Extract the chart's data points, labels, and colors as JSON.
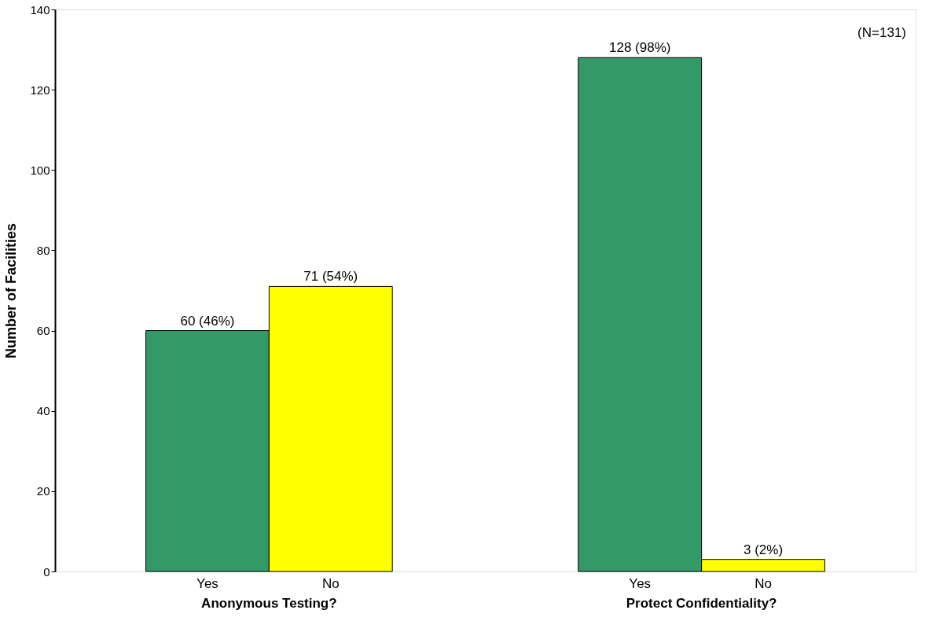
{
  "chart_data": {
    "type": "bar",
    "categories": [
      "Anonymous Testing?",
      "Protect Confidentiality?"
    ],
    "series": [
      {
        "name": "Yes",
        "color": "#339966",
        "values": [
          60,
          128
        ],
        "value_labels": [
          "60 (46%)",
          "128 (98%)"
        ]
      },
      {
        "name": "No",
        "color": "#ffff00",
        "values": [
          71,
          3
        ],
        "value_labels": [
          "71 (54%)",
          "3 (2%)"
        ]
      }
    ],
    "ylabel": "Number of Facilities",
    "ylim": [
      0,
      140
    ],
    "yticks": [
      0,
      20,
      40,
      60,
      80,
      100,
      120,
      140
    ],
    "annotations": [
      "(N=131)"
    ],
    "legend": false,
    "grid": false
  }
}
